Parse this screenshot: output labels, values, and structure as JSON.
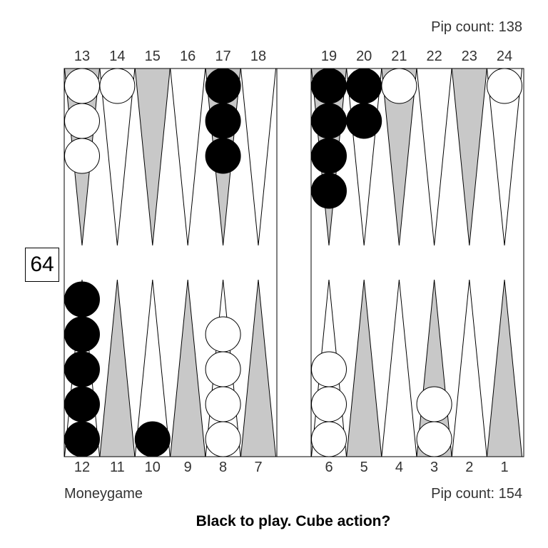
{
  "colors": {
    "light_point": "#ffffff",
    "dark_point": "#c8c8c8",
    "black_checker": "#000000",
    "white_checker": "#ffffff",
    "board_line": "#000000"
  },
  "top_pip_count": "Pip count: 138",
  "bottom_pip_count": "Pip count: 154",
  "match_type": "Moneygame",
  "prompt": "Black to play. Cube action?",
  "cube_value": "64",
  "top_point_labels": [
    "13",
    "14",
    "15",
    "16",
    "17",
    "18",
    "19",
    "20",
    "21",
    "22",
    "23",
    "24"
  ],
  "bottom_point_labels": [
    "12",
    "11",
    "10",
    "9",
    "8",
    "7",
    "6",
    "5",
    "4",
    "3",
    "2",
    "1"
  ],
  "positions": [
    {
      "point": 13,
      "color": "white",
      "count": 3
    },
    {
      "point": 14,
      "color": "white",
      "count": 1
    },
    {
      "point": 17,
      "color": "black",
      "count": 3
    },
    {
      "point": 19,
      "color": "black",
      "count": 4
    },
    {
      "point": 20,
      "color": "black",
      "count": 2
    },
    {
      "point": 21,
      "color": "white",
      "count": 1
    },
    {
      "point": 24,
      "color": "white",
      "count": 1
    },
    {
      "point": 12,
      "color": "black",
      "count": 5
    },
    {
      "point": 10,
      "color": "black",
      "count": 1
    },
    {
      "point": 8,
      "color": "white",
      "count": 4
    },
    {
      "point": 6,
      "color": "white",
      "count": 3
    },
    {
      "point": 3,
      "color": "white",
      "count": 2
    }
  ]
}
